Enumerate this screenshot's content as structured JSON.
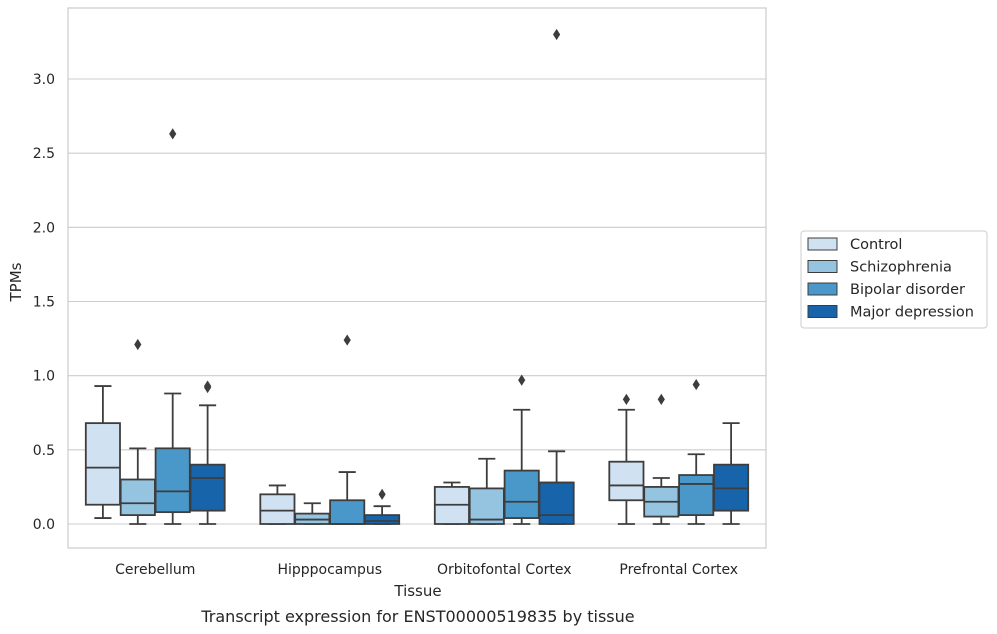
{
  "caption": "Transcript expression for ENST00000519835 by tissue",
  "chart_data": {
    "type": "boxplot",
    "title": "",
    "xlabel": "Tissue",
    "ylabel": "TPMs",
    "ylim": [
      -0.16,
      3.5
    ],
    "yticks": [
      0.0,
      0.5,
      1.0,
      1.5,
      2.0,
      2.5,
      3.0
    ],
    "ytick_labels": [
      "0.0",
      "0.5",
      "1.0",
      "1.5",
      "2.0",
      "2.5",
      "3.0"
    ],
    "grid": "horizontal",
    "legend_placement": "right",
    "categories": [
      "Cerebellum",
      "Hipppocampus",
      "Orbitofontal Cortex",
      "Prefrontal Cortex"
    ],
    "series": [
      {
        "name": "Control",
        "color": "#d0e1f2",
        "boxes": [
          {
            "whislo": 0.04,
            "q1": 0.13,
            "med": 0.38,
            "q3": 0.68,
            "whishi": 0.93,
            "fliers": []
          },
          {
            "whislo": 0.0,
            "q1": 0.0,
            "med": 0.09,
            "q3": 0.2,
            "whishi": 0.26,
            "fliers": []
          },
          {
            "whislo": 0.0,
            "q1": 0.0,
            "med": 0.13,
            "q3": 0.25,
            "whishi": 0.28,
            "fliers": []
          },
          {
            "whislo": 0.0,
            "q1": 0.16,
            "med": 0.26,
            "q3": 0.42,
            "whishi": 0.77,
            "fliers": [
              0.84
            ]
          }
        ]
      },
      {
        "name": "Schizophrenia",
        "color": "#94c4df",
        "boxes": [
          {
            "whislo": 0.0,
            "q1": 0.06,
            "med": 0.14,
            "q3": 0.3,
            "whishi": 0.51,
            "fliers": [
              1.21
            ]
          },
          {
            "whislo": 0.0,
            "q1": 0.0,
            "med": 0.03,
            "q3": 0.07,
            "whishi": 0.14,
            "fliers": []
          },
          {
            "whislo": 0.0,
            "q1": 0.0,
            "med": 0.03,
            "q3": 0.24,
            "whishi": 0.44,
            "fliers": []
          },
          {
            "whislo": 0.0,
            "q1": 0.05,
            "med": 0.15,
            "q3": 0.25,
            "whishi": 0.31,
            "fliers": [
              0.84
            ]
          }
        ]
      },
      {
        "name": "Bipolar disorder",
        "color": "#4a98c9",
        "boxes": [
          {
            "whislo": 0.0,
            "q1": 0.08,
            "med": 0.22,
            "q3": 0.51,
            "whishi": 0.88,
            "fliers": [
              2.63
            ]
          },
          {
            "whislo": 0.0,
            "q1": 0.0,
            "med": 0.0,
            "q3": 0.16,
            "whishi": 0.35,
            "fliers": [
              1.24
            ]
          },
          {
            "whislo": 0.0,
            "q1": 0.04,
            "med": 0.15,
            "q3": 0.36,
            "whishi": 0.77,
            "fliers": [
              0.97
            ]
          },
          {
            "whislo": 0.0,
            "q1": 0.06,
            "med": 0.27,
            "q3": 0.33,
            "whishi": 0.47,
            "fliers": [
              0.94
            ]
          }
        ]
      },
      {
        "name": "Major depression",
        "color": "#1764ab",
        "boxes": [
          {
            "whislo": 0.0,
            "q1": 0.09,
            "med": 0.31,
            "q3": 0.4,
            "whishi": 0.8,
            "fliers": [
              0.92,
              0.93
            ]
          },
          {
            "whislo": 0.0,
            "q1": 0.0,
            "med": 0.02,
            "q3": 0.06,
            "whishi": 0.12,
            "fliers": [
              0.2
            ]
          },
          {
            "whislo": 0.0,
            "q1": 0.0,
            "med": 0.06,
            "q3": 0.28,
            "whishi": 0.49,
            "fliers": [
              3.3
            ]
          },
          {
            "whislo": 0.0,
            "q1": 0.09,
            "med": 0.24,
            "q3": 0.4,
            "whishi": 0.68,
            "fliers": []
          }
        ]
      }
    ]
  }
}
